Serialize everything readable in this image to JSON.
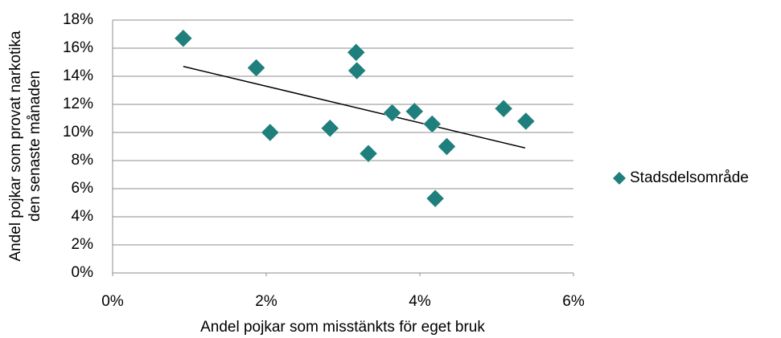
{
  "chart_data": {
    "type": "scatter",
    "xlabel": "Andel pojkar som misstänkts för eget bruk",
    "ylabel": [
      "Andel pojkar som provat narkotika",
      "den senaste månaden"
    ],
    "series": [
      {
        "name": "Stadsdelsområde",
        "color": "#1f7f7c",
        "x": [
          0.92,
          1.87,
          2.05,
          2.83,
          3.17,
          3.18,
          3.33,
          3.64,
          3.93,
          4.16,
          4.2,
          4.35,
          5.09,
          5.38
        ],
        "values": [
          16.7,
          14.6,
          10.0,
          10.3,
          15.7,
          14.4,
          8.5,
          11.4,
          11.5,
          10.6,
          5.3,
          9.0,
          11.7,
          10.8
        ]
      }
    ],
    "trendline": {
      "color": "#000000",
      "x": [
        0.92,
        5.37
      ],
      "values": [
        14.7,
        8.9
      ]
    },
    "xlim": [
      0,
      6
    ],
    "xticks": [
      {
        "value": 0,
        "label": "0%"
      },
      {
        "value": 2,
        "label": "2%"
      },
      {
        "value": 4,
        "label": "4%"
      },
      {
        "value": 6,
        "label": "6%"
      }
    ],
    "ylim": [
      0,
      18
    ],
    "yticks": [
      {
        "value": 0,
        "label": "0%"
      },
      {
        "value": 2,
        "label": "2%"
      },
      {
        "value": 4,
        "label": "4%"
      },
      {
        "value": 6,
        "label": "6%"
      },
      {
        "value": 8,
        "label": "8%"
      },
      {
        "value": 10,
        "label": "10%"
      },
      {
        "value": 12,
        "label": "12%"
      },
      {
        "value": 14,
        "label": "14%"
      },
      {
        "value": 16,
        "label": "16%"
      },
      {
        "value": 18,
        "label": "18%"
      }
    ],
    "grid": true,
    "legend": "right"
  }
}
